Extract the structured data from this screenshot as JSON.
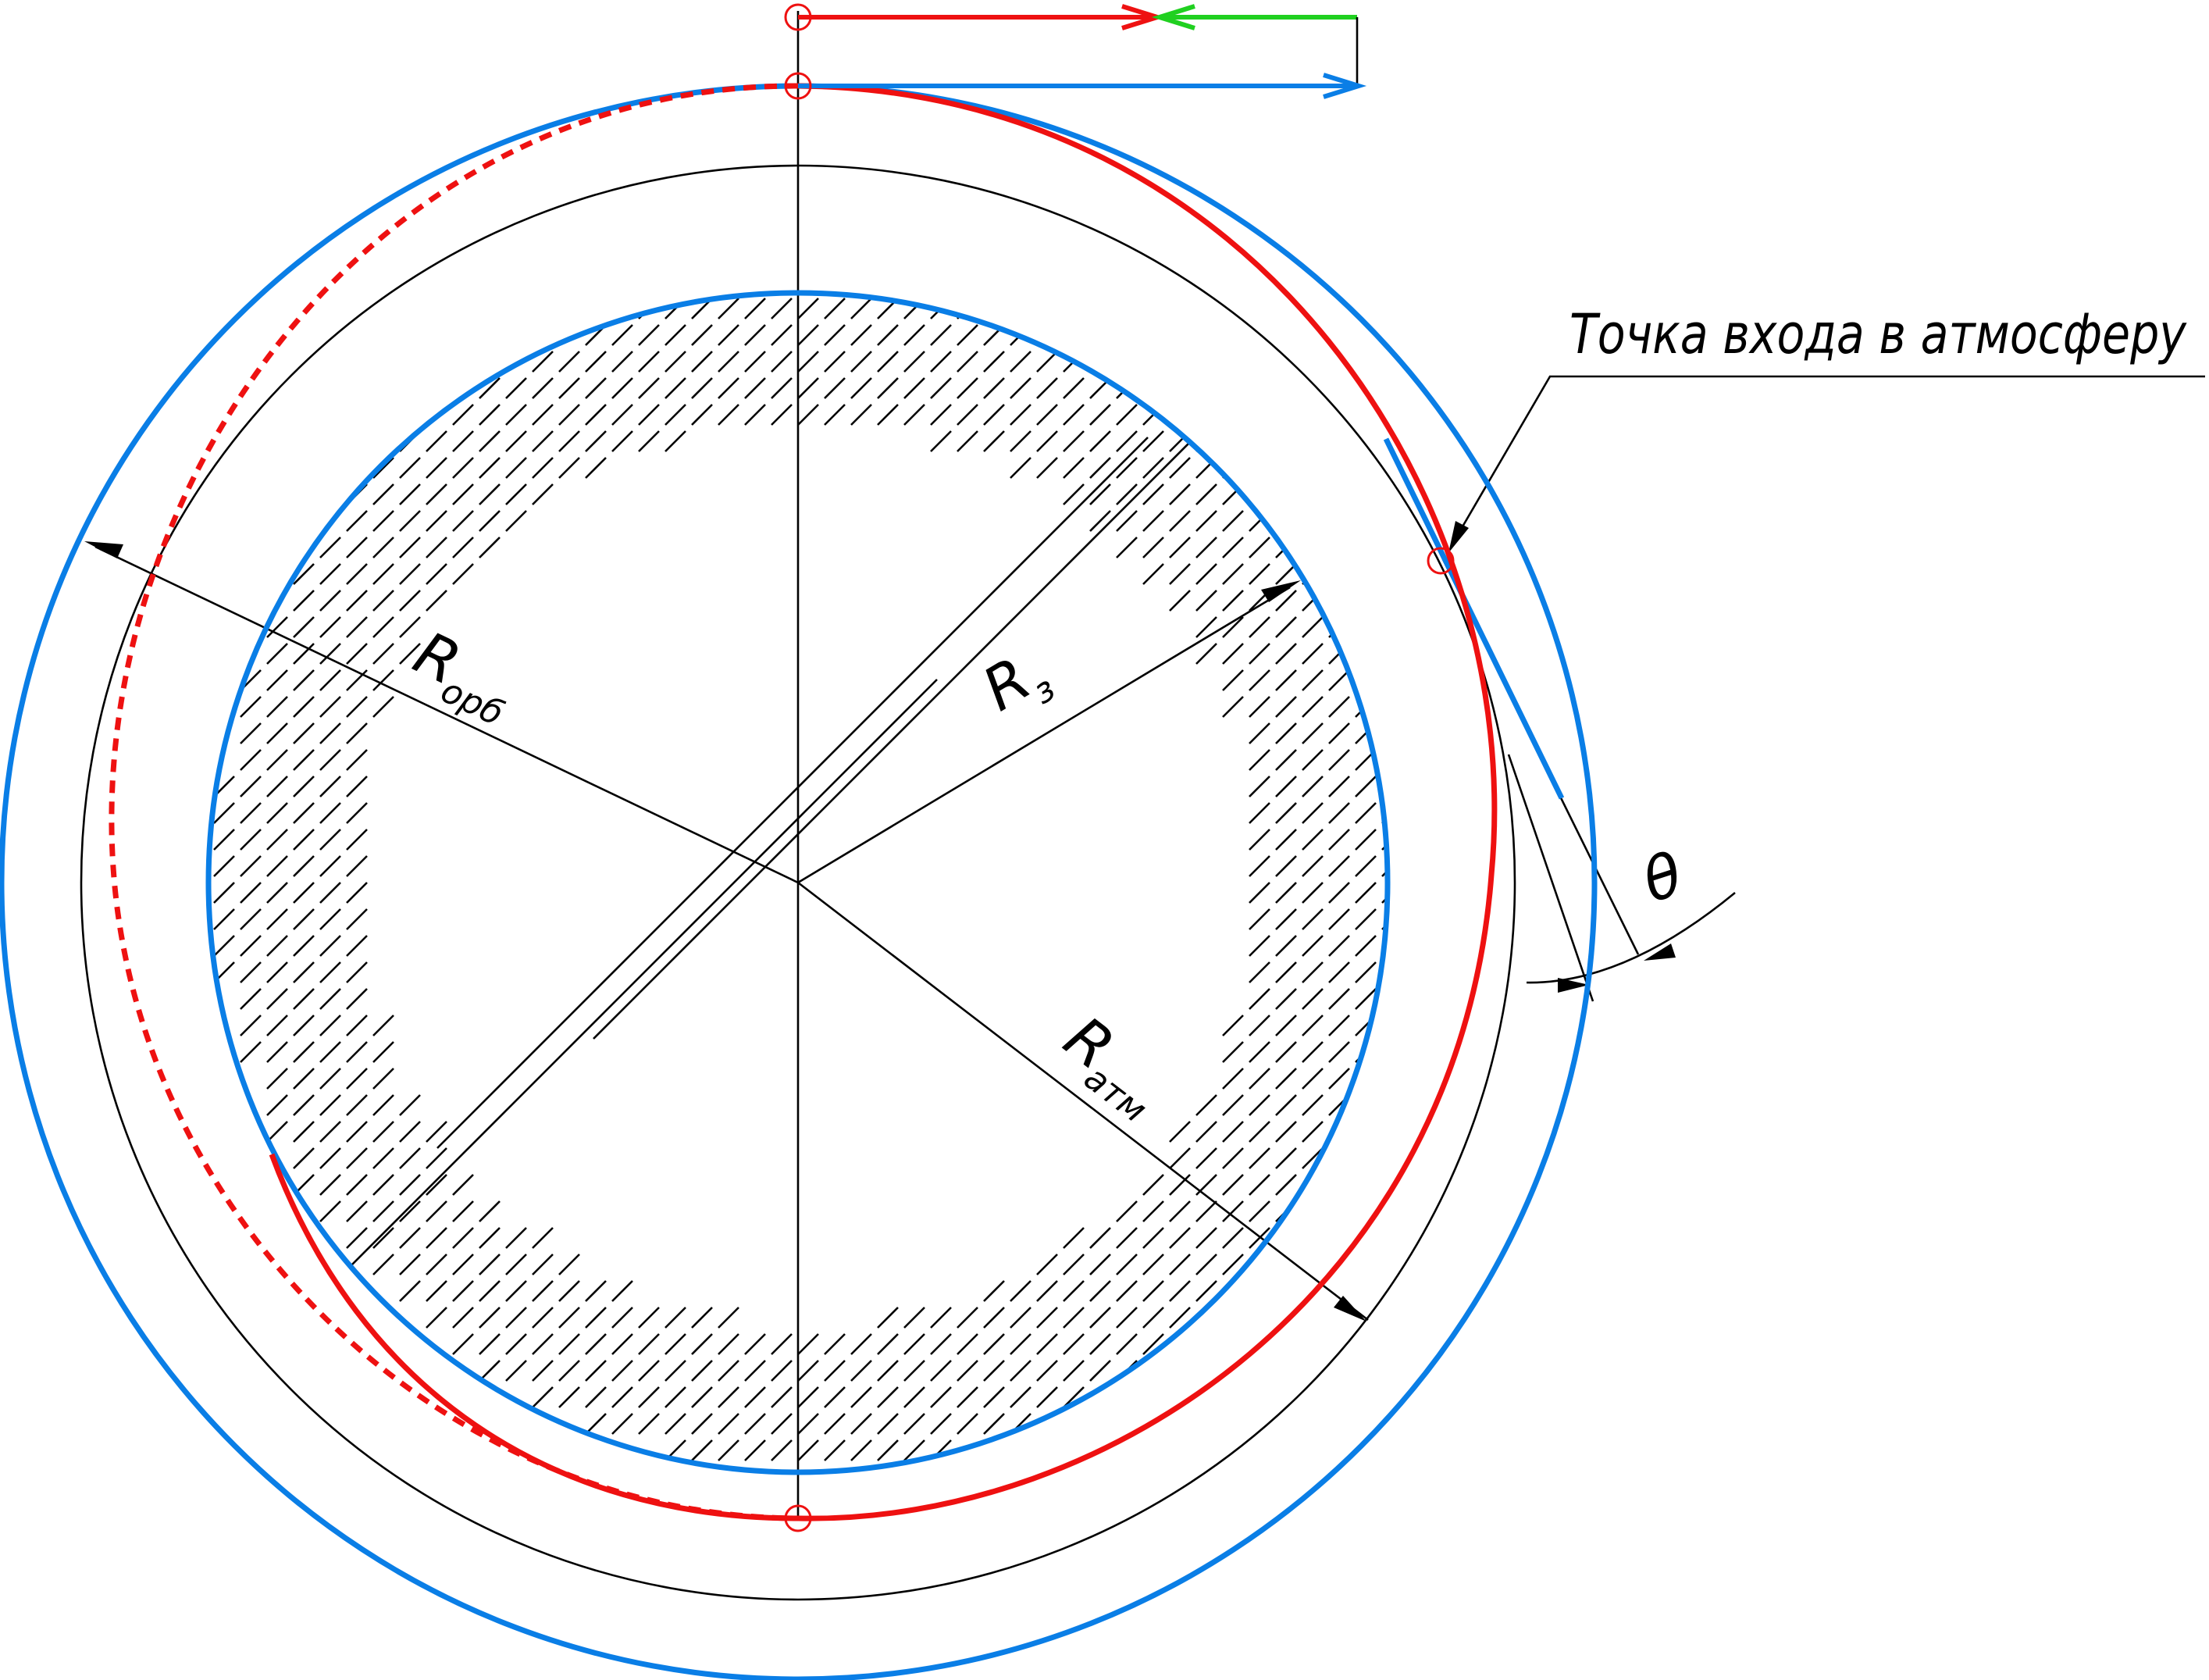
{
  "colors": {
    "orbit_circle": "#0a7ee6",
    "descent_trajectory": "#ee1111",
    "velocity_after_impulse": "#ee1111",
    "orbital_velocity": "#0a7ee6",
    "braking_impulse": "#20d020",
    "auxiliary_lines": "#000000"
  },
  "labels": {
    "r_orbit": {
      "main": "R",
      "sub": "орб"
    },
    "r_earth": {
      "main": "R",
      "sub": "з"
    },
    "r_atmosphere": {
      "main": "R",
      "sub": "атм"
    },
    "theta": "θ",
    "entry_point_note": "Точка входа в атмосферу"
  },
  "icons": {
    "points": "open-circle-marker",
    "arrows": "arrowhead"
  }
}
